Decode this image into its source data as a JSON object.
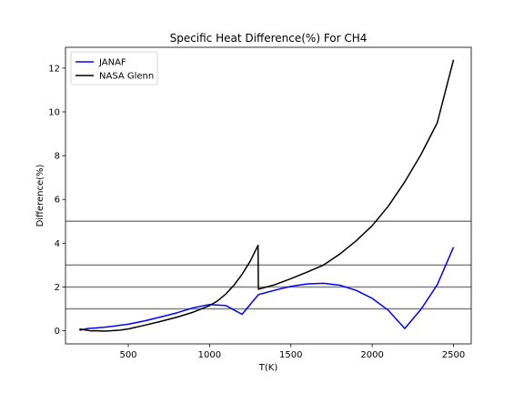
{
  "chart_data": {
    "type": "line",
    "title": "Specific Heat Difference(%) For CH4",
    "xlabel": "T(K)",
    "ylabel": "Difference(%)",
    "xlim": [
      114,
      2609
    ],
    "ylim": [
      -0.6,
      12.95
    ],
    "xticks": [
      500,
      1000,
      1500,
      2000,
      2500
    ],
    "yticks": [
      0,
      2,
      4,
      6,
      8,
      10,
      12
    ],
    "grid": false,
    "legend_position": "upper left",
    "hlines": [
      1,
      2,
      3,
      5
    ],
    "hline_color": "#808080",
    "series": [
      {
        "name": "JANAF",
        "color": "#0000ff",
        "points": [
          [
            200,
            0.02
          ],
          [
            250,
            0.1
          ],
          [
            300,
            0.13
          ],
          [
            350,
            0.16
          ],
          [
            400,
            0.2
          ],
          [
            450,
            0.25
          ],
          [
            500,
            0.3
          ],
          [
            600,
            0.45
          ],
          [
            700,
            0.63
          ],
          [
            800,
            0.82
          ],
          [
            900,
            1.05
          ],
          [
            1000,
            1.2
          ],
          [
            1100,
            1.15
          ],
          [
            1200,
            0.75
          ],
          [
            1300,
            1.65
          ],
          [
            1400,
            1.85
          ],
          [
            1500,
            2.03
          ],
          [
            1600,
            2.14
          ],
          [
            1700,
            2.17
          ],
          [
            1800,
            2.08
          ],
          [
            1900,
            1.85
          ],
          [
            2000,
            1.48
          ],
          [
            2100,
            0.93
          ],
          [
            2200,
            0.1
          ],
          [
            2300,
            0.98
          ],
          [
            2400,
            2.1
          ],
          [
            2500,
            3.82
          ]
        ]
      },
      {
        "name": "NASA Glenn",
        "color": "#000000",
        "points": [
          [
            200,
            0.08
          ],
          [
            225,
            0.05
          ],
          [
            250,
            0.02
          ],
          [
            275,
            -0.01
          ],
          [
            300,
            0.0
          ],
          [
            350,
            -0.02
          ],
          [
            400,
            0.0
          ],
          [
            450,
            0.03
          ],
          [
            500,
            0.08
          ],
          [
            600,
            0.25
          ],
          [
            700,
            0.43
          ],
          [
            800,
            0.62
          ],
          [
            900,
            0.85
          ],
          [
            1000,
            1.15
          ],
          [
            1050,
            1.37
          ],
          [
            1100,
            1.68
          ],
          [
            1150,
            2.08
          ],
          [
            1200,
            2.58
          ],
          [
            1250,
            3.18
          ],
          [
            1298,
            3.9
          ],
          [
            1300,
            1.9
          ],
          [
            1400,
            2.1
          ],
          [
            1500,
            2.38
          ],
          [
            1600,
            2.68
          ],
          [
            1700,
            3.0
          ],
          [
            1800,
            3.5
          ],
          [
            1900,
            4.1
          ],
          [
            2000,
            4.8
          ],
          [
            2100,
            5.7
          ],
          [
            2200,
            6.8
          ],
          [
            2300,
            8.05
          ],
          [
            2400,
            9.5
          ],
          [
            2500,
            12.38
          ]
        ]
      }
    ]
  }
}
